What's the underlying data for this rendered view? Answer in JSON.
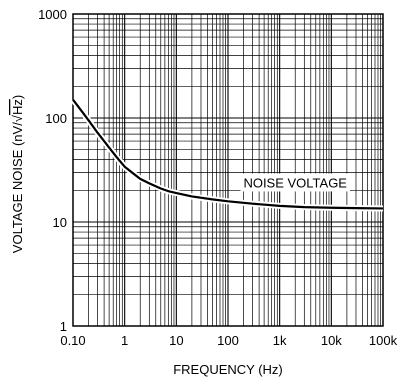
{
  "chart_data": {
    "type": "line",
    "xscale": "log",
    "yscale": "log",
    "xlim": [
      0.1,
      100000
    ],
    "ylim": [
      1,
      1000
    ],
    "xlabel": "FREQUENCY (Hz)",
    "ylabel_prefix": "VOLTAGE NOISE (nV/",
    "ylabel_radical": "√",
    "ylabel_radicand": "Hz",
    "ylabel_suffix": ")",
    "x_ticks": [
      {
        "value": 0.1,
        "label": "0.10"
      },
      {
        "value": 1,
        "label": "1"
      },
      {
        "value": 10,
        "label": "10"
      },
      {
        "value": 100,
        "label": "100"
      },
      {
        "value": 1000,
        "label": "1k"
      },
      {
        "value": 10000,
        "label": "10k"
      },
      {
        "value": 100000,
        "label": "100k"
      }
    ],
    "y_ticks": [
      {
        "value": 1,
        "label": "1"
      },
      {
        "value": 10,
        "label": "10"
      },
      {
        "value": 100,
        "label": "100"
      },
      {
        "value": 1000,
        "label": "1000"
      }
    ],
    "grid": true,
    "series": [
      {
        "name": "NOISE VOLTAGE",
        "x": [
          0.1,
          0.15,
          0.2,
          0.3,
          0.5,
          0.7,
          1,
          1.5,
          2,
          3,
          5,
          7,
          10,
          20,
          50,
          100,
          300,
          1000,
          3000,
          10000,
          30000,
          100000
        ],
        "y": [
          150,
          115,
          95,
          72,
          52,
          42,
          34,
          29,
          26,
          23.5,
          21,
          19.8,
          19,
          17.6,
          16.5,
          15.8,
          15,
          14.3,
          13.9,
          13.7,
          13.6,
          13.5
        ]
      }
    ],
    "annotations": [
      {
        "text": "NOISE VOLTAGE",
        "x": 2000,
        "y": 24
      }
    ]
  }
}
